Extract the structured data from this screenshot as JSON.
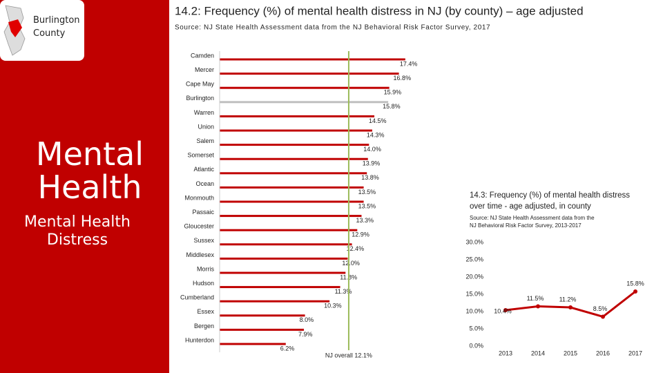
{
  "sidebar": {
    "badge": "Burlington County",
    "heading": "Mental Health",
    "subheading": "Mental Health Distress"
  },
  "chart_data": [
    {
      "type": "hbar",
      "title": "14.2: Frequency (%) of mental health distress in NJ (by county) – age adjusted",
      "subtitle": "Source: NJ State Health Assessment data from the NJ Behavioral Risk Factor Survey, 2017",
      "categories": [
        "Camden",
        "Mercer",
        "Cape May",
        "Burlington",
        "Warren",
        "Union",
        "Salem",
        "Somerset",
        "Atlantic",
        "Ocean",
        "Monmouth",
        "Passaic",
        "Gloucester",
        "Sussex",
        "Middlesex",
        "Morris",
        "Hudson",
        "Cumberland",
        "Essex",
        "Bergen",
        "Hunterdon"
      ],
      "values": [
        17.4,
        16.8,
        15.9,
        15.8,
        14.5,
        14.3,
        14.0,
        13.9,
        13.8,
        13.5,
        13.5,
        13.3,
        12.9,
        12.4,
        12.0,
        11.8,
        11.3,
        10.3,
        8.0,
        7.9,
        6.2
      ],
      "value_labels": [
        "17.4%",
        "16.8%",
        "15.9%",
        "15.8%",
        "14.5%",
        "14.3%",
        "14.0%",
        "13.9%",
        "13.8%",
        "13.5%",
        "13.5%",
        "13.3%",
        "12.9%",
        "12.4%",
        "12.0%",
        "11.8%",
        "11.3%",
        "10.3%",
        "8.0%",
        "7.9%",
        "6.2%"
      ],
      "colors": [
        "#c00000",
        "#c00000",
        "#c00000",
        "#bfbfbf",
        "#c00000",
        "#c00000",
        "#c00000",
        "#c00000",
        "#c00000",
        "#c00000",
        "#c00000",
        "#c00000",
        "#c00000",
        "#c00000",
        "#c00000",
        "#c00000",
        "#c00000",
        "#c00000",
        "#c00000",
        "#c00000",
        "#c00000"
      ],
      "reference": {
        "value": 12.1,
        "label": "NJ overall 12.1%",
        "color": "#9bbb59"
      }
    },
    {
      "type": "line",
      "title": "14.3: Frequency (%) of mental health distress over time - age adjusted, in county",
      "subtitle": "Source: NJ State Health Assessment data from the NJ Behavioral Risk Factor Survey, 2013-2017",
      "categories": [
        "2013",
        "2014",
        "2015",
        "2016",
        "2017"
      ],
      "values": [
        10.4,
        11.5,
        11.2,
        8.5,
        15.8
      ],
      "value_labels": [
        "10.4%",
        "11.5%",
        "11.2%",
        "8.5%",
        "15.8%"
      ],
      "color": "#c00000",
      "ylim": [
        0,
        30
      ],
      "yticks": [
        {
          "value": 0,
          "label": "0.0%"
        },
        {
          "value": 5,
          "label": "5.0%"
        },
        {
          "value": 10,
          "label": "10.0%"
        },
        {
          "value": 15,
          "label": "15.0%"
        },
        {
          "value": 20,
          "label": "20.0%"
        },
        {
          "value": 25,
          "label": "25.0%"
        },
        {
          "value": 30,
          "label": "30.0%"
        }
      ]
    }
  ]
}
